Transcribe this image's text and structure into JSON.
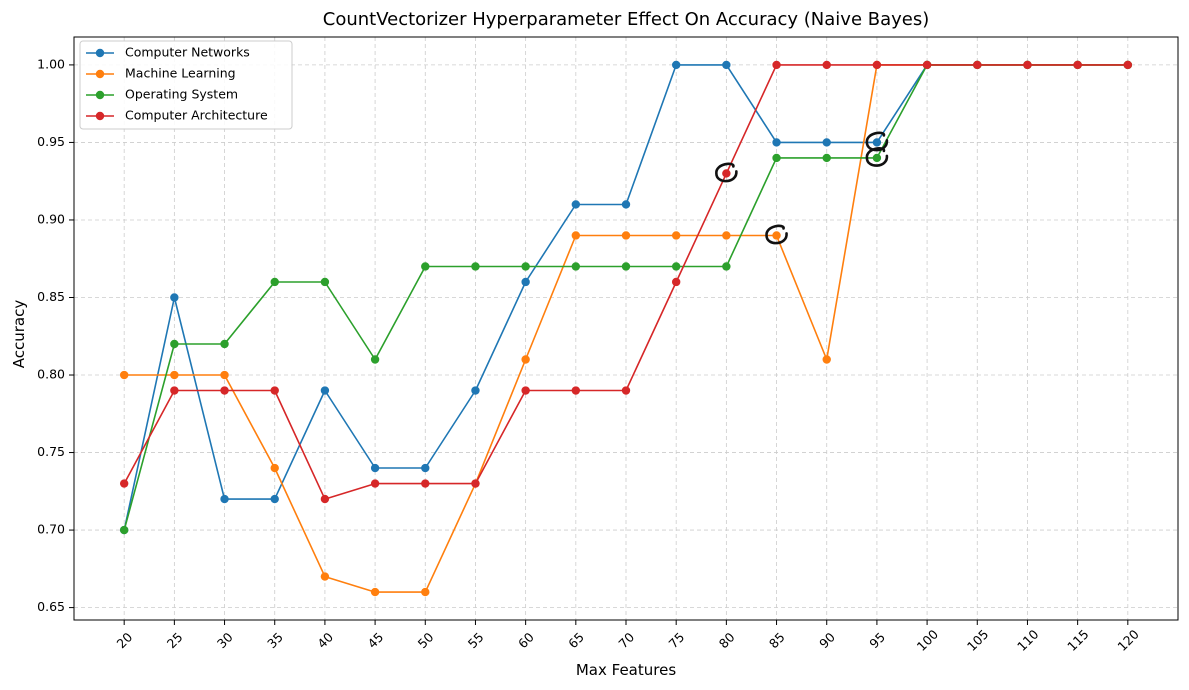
{
  "chart_data": {
    "type": "line",
    "title": "CountVectorizer Hyperparameter Effect On Accuracy (Naive Bayes)",
    "xlabel": "Max Features",
    "ylabel": "Accuracy",
    "x": [
      20,
      25,
      30,
      35,
      40,
      45,
      50,
      55,
      60,
      65,
      70,
      75,
      80,
      85,
      90,
      95,
      100,
      105,
      110,
      115,
      120
    ],
    "x_tick_labels": [
      "20",
      "25",
      "30",
      "35",
      "40",
      "45",
      "50",
      "55",
      "60",
      "65",
      "70",
      "75",
      "80",
      "85",
      "90",
      "95",
      "100",
      "105",
      "110",
      "115",
      "120"
    ],
    "y_tick_labels": [
      "0.65",
      "0.70",
      "0.75",
      "0.80",
      "0.85",
      "0.90",
      "0.95",
      "1.00"
    ],
    "y_ticks": [
      0.65,
      0.7,
      0.75,
      0.8,
      0.85,
      0.9,
      0.95,
      1.0
    ],
    "ylim": [
      0.642,
      1.018
    ],
    "grid": true,
    "legend_position": "top-left",
    "series": [
      {
        "name": "Computer Networks",
        "color": "#1f77b4",
        "values": [
          0.7,
          0.85,
          0.72,
          0.72,
          0.79,
          0.74,
          0.74,
          0.79,
          0.86,
          0.91,
          0.91,
          1.0,
          1.0,
          0.95,
          0.95,
          0.95,
          1.0,
          1.0,
          1.0,
          1.0,
          1.0
        ]
      },
      {
        "name": "Machine Learning",
        "color": "#ff7f0e",
        "values": [
          0.8,
          0.8,
          0.8,
          0.74,
          0.67,
          0.66,
          0.66,
          0.73,
          0.81,
          0.89,
          0.89,
          0.89,
          0.89,
          0.89,
          0.81,
          1.0,
          1.0,
          1.0,
          1.0,
          1.0,
          1.0
        ]
      },
      {
        "name": "Operating System",
        "color": "#2ca02c",
        "values": [
          0.7,
          0.82,
          0.82,
          0.86,
          0.86,
          0.81,
          0.87,
          0.87,
          0.87,
          0.87,
          0.87,
          0.87,
          0.87,
          0.94,
          0.94,
          0.94,
          1.0,
          1.0,
          1.0,
          1.0,
          1.0
        ]
      },
      {
        "name": "Computer Architecture",
        "color": "#d62728",
        "values": [
          0.73,
          0.79,
          0.79,
          0.79,
          0.72,
          0.73,
          0.73,
          0.73,
          0.79,
          0.79,
          0.79,
          0.86,
          0.93,
          1.0,
          1.0,
          1.0,
          1.0,
          1.0,
          1.0,
          1.0,
          1.0
        ]
      }
    ],
    "annotations": [
      {
        "type": "hand-drawn-circle",
        "x": 80,
        "y": 0.93
      },
      {
        "type": "hand-drawn-circle",
        "x": 85,
        "y": 0.89
      },
      {
        "type": "hand-drawn-circle",
        "x": 95,
        "y": 0.95
      },
      {
        "type": "hand-drawn-circle",
        "x": 95,
        "y": 0.94
      }
    ]
  }
}
